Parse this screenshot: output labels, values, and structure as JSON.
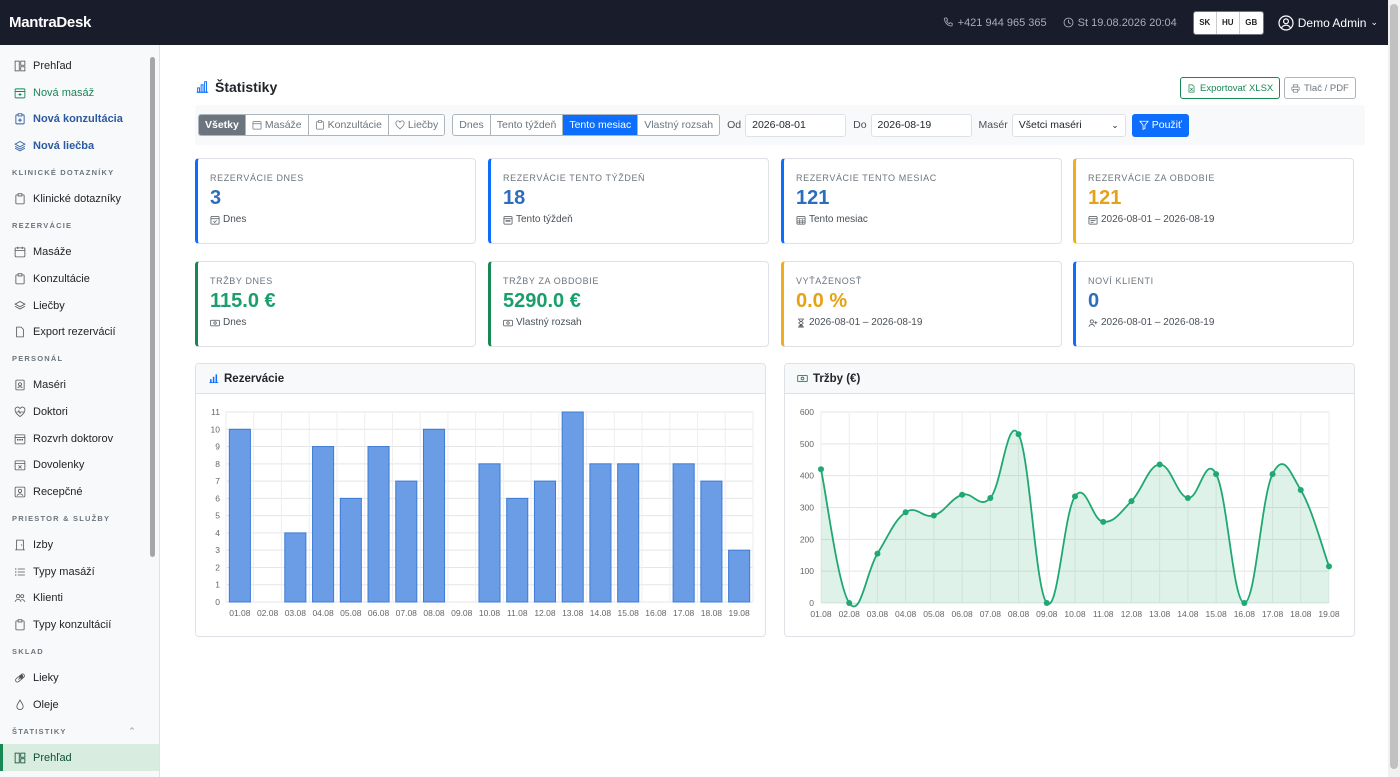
{
  "topbar": {
    "brand": "MantraDesk",
    "phone": "+421 944 965 365",
    "datetime": "St 19.08.2026 20:04",
    "langs": [
      "SK",
      "HU",
      "GB"
    ],
    "user": "Demo Admin"
  },
  "sidebar": {
    "top": [
      {
        "label": "Prehľad",
        "icon": "dashboard-icon"
      },
      {
        "label": "Nová masáž",
        "icon": "calendar-plus-icon"
      },
      {
        "label": "Nová konzultácia",
        "icon": "clipboard-plus-icon"
      },
      {
        "label": "Nová liečba",
        "icon": "layers-icon"
      }
    ],
    "sections": [
      {
        "title": "KLINICKÉ DOTAZNÍKY",
        "items": [
          {
            "label": "Klinické dotazníky",
            "icon": "clipboard-icon"
          }
        ]
      },
      {
        "title": "REZERVÁCIE",
        "items": [
          {
            "label": "Masáže",
            "icon": "calendar-icon"
          },
          {
            "label": "Konzultácie",
            "icon": "clipboard-icon"
          },
          {
            "label": "Liečby",
            "icon": "layers-icon"
          },
          {
            "label": "Export rezervácií",
            "icon": "file-icon"
          }
        ]
      },
      {
        "title": "PERSONÁL",
        "items": [
          {
            "label": "Maséri",
            "icon": "person-badge-icon"
          },
          {
            "label": "Doktori",
            "icon": "heart-pulse-icon"
          },
          {
            "label": "Rozvrh doktorov",
            "icon": "calendar-week-icon"
          },
          {
            "label": "Dovolenky",
            "icon": "calendar-x-icon"
          },
          {
            "label": "Recepčné",
            "icon": "person-square-icon"
          }
        ]
      },
      {
        "title": "PRIESTOR & SLUŽBY",
        "items": [
          {
            "label": "Izby",
            "icon": "door-icon"
          },
          {
            "label": "Typy masáží",
            "icon": "list-icon"
          },
          {
            "label": "Klienti",
            "icon": "people-icon"
          },
          {
            "label": "Typy konzultácií",
            "icon": "clipboard-icon"
          }
        ]
      },
      {
        "title": "SKLAD",
        "items": [
          {
            "label": "Lieky",
            "icon": "capsule-icon"
          },
          {
            "label": "Oleje",
            "icon": "droplet-icon"
          }
        ]
      },
      {
        "title": "ŠTATISTIKY",
        "items": [
          {
            "label": "Prehľad",
            "icon": "dashboard-icon"
          }
        ]
      }
    ]
  },
  "page": {
    "title": "Štatistiky",
    "export_label": "Exportovať XLSX",
    "print_label": "Tlač / PDF"
  },
  "filters": {
    "types": [
      "Všetky",
      "Masáže",
      "Konzultácie",
      "Liečby"
    ],
    "active_type": "Všetky",
    "ranges": [
      "Dnes",
      "Tento týždeň",
      "Tento mesiac",
      "Vlastný rozsah"
    ],
    "active_range": "Tento mesiac",
    "from_label": "Od",
    "from_value": "2026-08-01",
    "to_label": "Do",
    "to_value": "2026-08-19",
    "masseur_label": "Masér",
    "masseur_value": "Všetci maséri",
    "apply_label": "Použiť"
  },
  "cards": [
    {
      "label": "REZERVÁCIE DNES",
      "value": "3",
      "sub": "Dnes",
      "color": "blue",
      "icon": "calendar-check-icon"
    },
    {
      "label": "REZERVÁCIE TENTO TÝŽDEŇ",
      "value": "18",
      "sub": "Tento týždeň",
      "color": "blue",
      "icon": "calendar-week-icon"
    },
    {
      "label": "REZERVÁCIE TENTO MESIAC",
      "value": "121",
      "sub": "Tento mesiac",
      "color": "blue",
      "icon": "calendar-month-icon"
    },
    {
      "label": "REZERVÁCIE ZA OBDOBIE",
      "value": "121",
      "sub": "2026-08-01 – 2026-08-19",
      "color": "yellow",
      "icon": "calendar-range-icon"
    },
    {
      "label": "TRŽBY DNES",
      "value": "115.0 €",
      "sub": "Dnes",
      "color": "green",
      "icon": "cash-icon"
    },
    {
      "label": "TRŽBY ZA OBDOBIE",
      "value": "5290.0 €",
      "sub": "Vlastný rozsah",
      "color": "green",
      "icon": "cash-icon"
    },
    {
      "label": "VYŤAŽENOSŤ",
      "value": "0.0 %",
      "sub": "2026-08-01 – 2026-08-19",
      "color": "yellow",
      "icon": "hourglass-icon"
    },
    {
      "label": "NOVÍ KLIENTI",
      "value": "0",
      "sub": "2026-08-01 – 2026-08-19",
      "color": "blue",
      "icon": "person-plus-icon"
    }
  ],
  "panels": {
    "reservations_title": "Rezervácie",
    "revenue_title": "Tržby (€)"
  },
  "chart_data": [
    {
      "type": "bar",
      "title": "Rezervácie",
      "categories": [
        "01.08",
        "02.08",
        "03.08",
        "04.08",
        "05.08",
        "06.08",
        "07.08",
        "08.08",
        "09.08",
        "10.08",
        "11.08",
        "12.08",
        "13.08",
        "14.08",
        "15.08",
        "16.08",
        "17.08",
        "18.08",
        "19.08"
      ],
      "values": [
        10,
        0,
        4,
        9,
        6,
        9,
        7,
        10,
        0,
        8,
        6,
        7,
        11,
        8,
        8,
        0,
        8,
        7,
        3
      ],
      "ylim": [
        0,
        11
      ],
      "yticks": [
        0,
        1,
        2,
        3,
        4,
        5,
        6,
        7,
        8,
        9,
        10,
        11
      ],
      "color": "#6a9de6",
      "grid": true
    },
    {
      "type": "area",
      "title": "Tržby (€)",
      "categories": [
        "01.08",
        "02.08",
        "03.08",
        "04.08",
        "05.08",
        "06.08",
        "07.08",
        "08.08",
        "09.08",
        "10.08",
        "11.08",
        "12.08",
        "13.08",
        "14.08",
        "15.08",
        "16.08",
        "17.08",
        "18.08",
        "19.08"
      ],
      "values": [
        420,
        0,
        155,
        285,
        275,
        340,
        330,
        530,
        0,
        335,
        255,
        320,
        435,
        330,
        405,
        0,
        405,
        355,
        115
      ],
      "ylim": [
        0,
        600
      ],
      "yticks": [
        0,
        100,
        200,
        300,
        400,
        500,
        600
      ],
      "color": "#20a872",
      "grid": true
    }
  ]
}
